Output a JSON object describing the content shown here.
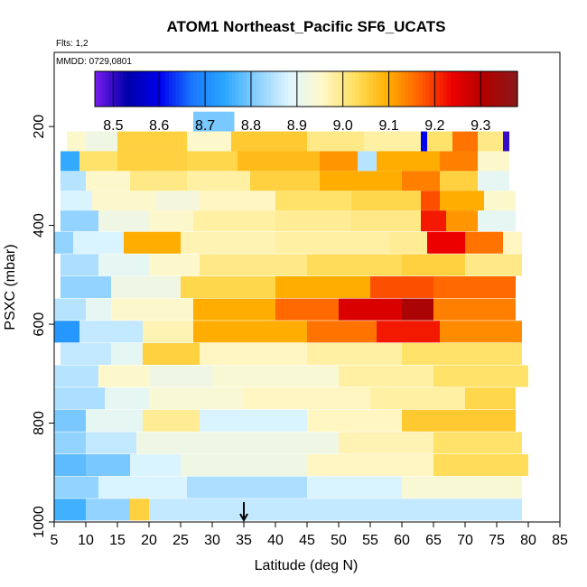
{
  "chart_data": {
    "type": "heatmap",
    "title": "ATOM1 Northeast_Pacific SF6_UCATS",
    "flights_label": "Flts: 1,2",
    "date_label": "MMDD: 0729,0801",
    "xlabel": "Latitude (deg N)",
    "ylabel": "PSXC (mbar)",
    "xlim": [
      5,
      85
    ],
    "ylim": [
      1000,
      50
    ],
    "y_reversed": true,
    "x_ticks": [
      "5",
      "10",
      "15",
      "20",
      "25",
      "30",
      "35",
      "40",
      "45",
      "50",
      "55",
      "60",
      "65",
      "70",
      "75",
      "80",
      "85"
    ],
    "y_ticks": [
      "200",
      "400",
      "600",
      "800",
      "1000"
    ],
    "marker_latitude": 35,
    "colorbar": {
      "range": [
        8.46,
        9.38
      ],
      "tick_labels": [
        "8.5",
        "8.6",
        "8.7",
        "8.8",
        "8.9",
        "9.0",
        "9.1",
        "9.2",
        "9.3"
      ],
      "tick_values": [
        8.5,
        8.6,
        8.7,
        8.8,
        8.9,
        9.0,
        9.1,
        9.2,
        9.3
      ],
      "colors": [
        "#7a1cf0",
        "#0000a8",
        "#0000ee",
        "#1a78ff",
        "#2aa6ff",
        "#8cd0ff",
        "#dff6ff",
        "#fff8c8",
        "#ffe060",
        "#ffb000",
        "#ff6000",
        "#ee0000",
        "#b00000",
        "#8a1a1a"
      ]
    },
    "rows": [
      {
        "p": 190,
        "segments": [
          [
            27,
            33.5,
            8.8
          ]
        ]
      },
      {
        "p": 230,
        "segments": [
          [
            7,
            10,
            8.95
          ],
          [
            10,
            15,
            8.92
          ],
          [
            15,
            26,
            9.05
          ],
          [
            26,
            33,
            8.95
          ],
          [
            33,
            45,
            9.06
          ],
          [
            45,
            54,
            9.0
          ],
          [
            54,
            63,
            8.98
          ],
          [
            63,
            64,
            8.6
          ],
          [
            64,
            68,
            9.02
          ],
          [
            68,
            72,
            9.15
          ],
          [
            72,
            76,
            9.0
          ],
          [
            76,
            77,
            8.5
          ]
        ]
      },
      {
        "p": 270,
        "segments": [
          [
            6,
            9,
            8.75
          ],
          [
            9,
            15,
            9.02
          ],
          [
            15,
            26,
            9.05
          ],
          [
            26,
            34,
            9.04
          ],
          [
            34,
            47,
            9.08
          ],
          [
            47,
            53,
            9.12
          ],
          [
            53,
            56,
            8.85
          ],
          [
            56,
            66,
            9.1
          ],
          [
            66,
            72,
            9.14
          ],
          [
            72,
            77,
            8.95
          ]
        ]
      },
      {
        "p": 310,
        "segments": [
          [
            6,
            10,
            8.85
          ],
          [
            10,
            17,
            8.95
          ],
          [
            17,
            26,
            9.0
          ],
          [
            26,
            36,
            8.98
          ],
          [
            36,
            47,
            9.05
          ],
          [
            47,
            60,
            9.1
          ],
          [
            60,
            66,
            9.14
          ],
          [
            66,
            72,
            9.05
          ],
          [
            72,
            77,
            8.9
          ]
        ]
      },
      {
        "p": 350,
        "segments": [
          [
            6,
            11,
            8.88
          ],
          [
            11,
            21,
            8.95
          ],
          [
            21,
            28,
            8.93
          ],
          [
            28,
            40,
            8.96
          ],
          [
            40,
            52,
            9.02
          ],
          [
            52,
            63,
            9.04
          ],
          [
            63,
            66,
            9.18
          ],
          [
            66,
            73,
            9.1
          ],
          [
            73,
            78,
            8.95
          ]
        ]
      },
      {
        "p": 390,
        "segments": [
          [
            6,
            12,
            8.82
          ],
          [
            12,
            20,
            8.92
          ],
          [
            20,
            27,
            8.95
          ],
          [
            27,
            40,
            8.98
          ],
          [
            40,
            52,
            8.99
          ],
          [
            52,
            63,
            9.0
          ],
          [
            63,
            67,
            9.22
          ],
          [
            67,
            72,
            9.12
          ],
          [
            72,
            78,
            8.9
          ]
        ]
      },
      {
        "p": 435,
        "segments": [
          [
            5,
            8,
            8.82
          ],
          [
            8,
            16,
            8.88
          ],
          [
            16,
            25,
            9.1
          ],
          [
            25,
            40,
            8.97
          ],
          [
            40,
            58,
            8.98
          ],
          [
            58,
            64,
            8.99
          ],
          [
            64,
            70,
            9.24
          ],
          [
            70,
            76,
            9.15
          ],
          [
            76,
            79,
            8.96
          ]
        ]
      },
      {
        "p": 480,
        "segments": [
          [
            6,
            12,
            8.84
          ],
          [
            12,
            20,
            8.9
          ],
          [
            20,
            28,
            8.95
          ],
          [
            28,
            45,
            9.0
          ],
          [
            45,
            60,
            9.03
          ],
          [
            60,
            70,
            9.05
          ],
          [
            70,
            79,
            9.0
          ]
        ]
      },
      {
        "p": 525,
        "segments": [
          [
            6,
            14,
            8.82
          ],
          [
            14,
            25,
            8.92
          ],
          [
            25,
            40,
            9.04
          ],
          [
            40,
            55,
            9.1
          ],
          [
            55,
            65,
            9.18
          ],
          [
            65,
            78,
            9.16
          ]
        ]
      },
      {
        "p": 570,
        "segments": [
          [
            5,
            10,
            8.85
          ],
          [
            10,
            14,
            8.9
          ],
          [
            14,
            27,
            8.95
          ],
          [
            27,
            40,
            9.1
          ],
          [
            40,
            50,
            9.16
          ],
          [
            50,
            60,
            9.26
          ],
          [
            60,
            65,
            9.32
          ],
          [
            65,
            78,
            9.14
          ]
        ]
      },
      {
        "p": 615,
        "segments": [
          [
            5,
            9,
            8.72
          ],
          [
            9,
            19,
            8.86
          ],
          [
            19,
            27,
            8.97
          ],
          [
            27,
            45,
            9.1
          ],
          [
            45,
            56,
            9.15
          ],
          [
            56,
            66,
            9.22
          ],
          [
            66,
            79,
            9.13
          ]
        ]
      },
      {
        "p": 660,
        "segments": [
          [
            6,
            14,
            8.86
          ],
          [
            14,
            19,
            8.9
          ],
          [
            19,
            28,
            9.05
          ],
          [
            28,
            45,
            8.96
          ],
          [
            45,
            60,
            8.98
          ],
          [
            60,
            79,
            9.02
          ]
        ]
      },
      {
        "p": 705,
        "segments": [
          [
            5,
            12,
            8.85
          ],
          [
            12,
            20,
            8.95
          ],
          [
            20,
            30,
            8.92
          ],
          [
            30,
            50,
            8.94
          ],
          [
            50,
            65,
            8.98
          ],
          [
            65,
            80,
            9.02
          ]
        ]
      },
      {
        "p": 750,
        "segments": [
          [
            5,
            13,
            8.84
          ],
          [
            13,
            20,
            8.9
          ],
          [
            20,
            35,
            8.94
          ],
          [
            35,
            55,
            8.96
          ],
          [
            55,
            70,
            8.98
          ],
          [
            70,
            78,
            9.04
          ]
        ]
      },
      {
        "p": 795,
        "segments": [
          [
            5,
            10,
            8.8
          ],
          [
            10,
            19,
            8.9
          ],
          [
            19,
            28,
            8.99
          ],
          [
            28,
            45,
            8.88
          ],
          [
            45,
            60,
            8.96
          ],
          [
            60,
            78,
            9.06
          ]
        ]
      },
      {
        "p": 840,
        "segments": [
          [
            5,
            10,
            8.82
          ],
          [
            10,
            18,
            8.86
          ],
          [
            18,
            30,
            8.92
          ],
          [
            30,
            50,
            8.92
          ],
          [
            50,
            65,
            8.97
          ],
          [
            65,
            79,
            9.02
          ]
        ]
      },
      {
        "p": 885,
        "segments": [
          [
            5,
            10,
            8.78
          ],
          [
            10,
            17,
            8.8
          ],
          [
            17,
            25,
            8.88
          ],
          [
            25,
            45,
            8.92
          ],
          [
            45,
            65,
            8.96
          ],
          [
            65,
            80,
            9.03
          ]
        ]
      },
      {
        "p": 930,
        "segments": [
          [
            5,
            12,
            8.82
          ],
          [
            12,
            26,
            8.88
          ],
          [
            26,
            45,
            8.84
          ],
          [
            45,
            60,
            8.88
          ],
          [
            60,
            79,
            8.94
          ]
        ]
      },
      {
        "p": 975,
        "segments": [
          [
            5,
            10,
            8.76
          ],
          [
            10,
            17,
            8.82
          ],
          [
            17,
            20,
            9.05
          ],
          [
            20,
            45,
            8.86
          ],
          [
            45,
            79,
            8.86
          ]
        ]
      }
    ]
  }
}
